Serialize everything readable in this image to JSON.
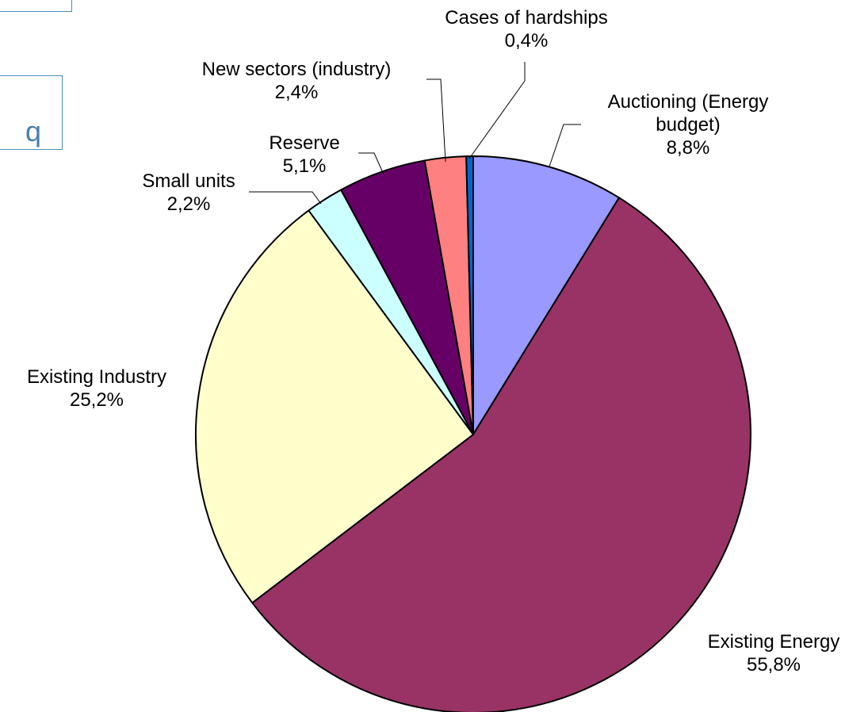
{
  "fragment": {
    "char": "q"
  },
  "chart_data": {
    "type": "pie",
    "title": "",
    "slices": [
      {
        "label": "Auctioning (Energy budget)",
        "label_lines": [
          "Auctioning (Energy",
          "budget)"
        ],
        "value": 8.8,
        "value_text": "8,8%",
        "color": "#9999ff"
      },
      {
        "label": "Existing Energy",
        "label_lines": [
          "Existing Energy"
        ],
        "value": 55.8,
        "value_text": "55,8%",
        "color": "#993366"
      },
      {
        "label": "Existing Industry",
        "label_lines": [
          "Existing Industry"
        ],
        "value": 25.2,
        "value_text": "25,2%",
        "color": "#ffffcc"
      },
      {
        "label": "Small units",
        "label_lines": [
          "Small units"
        ],
        "value": 2.2,
        "value_text": "2,2%",
        "color": "#ccffff"
      },
      {
        "label": "Reserve",
        "label_lines": [
          "Reserve"
        ],
        "value": 5.1,
        "value_text": "5,1%",
        "color": "#660066"
      },
      {
        "label": "New sectors (industry)",
        "label_lines": [
          "New sectors (industry)"
        ],
        "value": 2.4,
        "value_text": "2,4%",
        "color": "#ff8080"
      },
      {
        "label": "Cases of hardships",
        "label_lines": [
          "Cases of hardships"
        ],
        "value": 0.4,
        "value_text": "0,4%",
        "color": "#0066cc"
      }
    ]
  }
}
